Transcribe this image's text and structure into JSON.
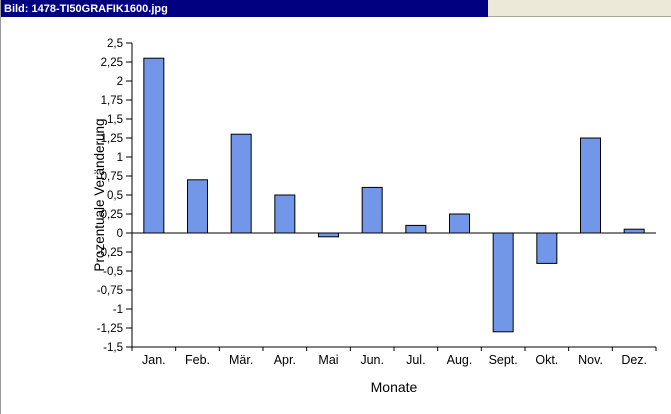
{
  "window": {
    "title": "Bild: 1478-TI50GRAFIK1600.jpg"
  },
  "colors": {
    "titlebar": "#000080",
    "titlebar_text": "#ffffff",
    "desktop_strip": "#ece9d8",
    "background": "#ffffff",
    "axis": "#000000"
  },
  "chart_data": {
    "type": "bar",
    "title": "",
    "xlabel": "Monate",
    "ylabel": "Prozentuale Veränderung",
    "categories": [
      "Jan.",
      "Feb.",
      "Mär.",
      "Apr.",
      "Mai",
      "Jun.",
      "Jul.",
      "Aug.",
      "Sept.",
      "Okt.",
      "Nov.",
      "Dez."
    ],
    "values": [
      2.3,
      0.7,
      1.3,
      0.5,
      -0.05,
      0.6,
      0.1,
      0.25,
      -1.3,
      -0.4,
      1.25,
      0.05
    ],
    "ylim": [
      -1.5,
      2.5
    ],
    "ytick_step": 0.25,
    "ytick_labels": [
      "2,5",
      "2,25",
      "2",
      "1,75",
      "1,5",
      "1,25",
      "1",
      "0,75",
      "0,5",
      "0,25",
      "0",
      "-0,25",
      "-0,5",
      "-0,75",
      "-1",
      "-1,25",
      "-1,5"
    ],
    "bar_color": "#7296E8",
    "bar_border": "#000000",
    "grid": false,
    "legend": "none"
  }
}
